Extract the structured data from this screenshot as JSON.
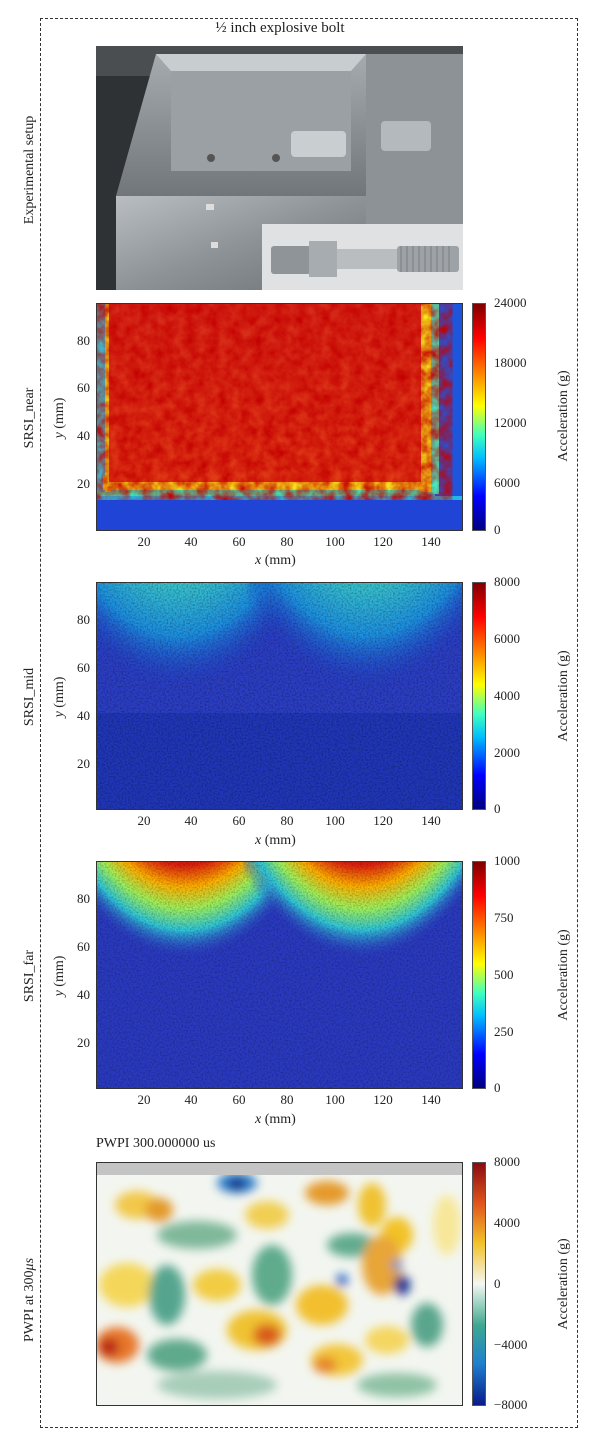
{
  "figure": {
    "top_title": "½ inch explosive bolt",
    "rows": [
      {
        "side_label": "Experimental setup"
      },
      {
        "side_label": "SRSI_near",
        "ylabel_italic": "y",
        "ylabel_unit": " (mm)",
        "xlabel_italic": "x",
        "xlabel_unit": " (mm)",
        "yticks": [
          "80",
          "60",
          "40",
          "20"
        ],
        "xticks": [
          "20",
          "40",
          "60",
          "80",
          "100",
          "120",
          "140"
        ],
        "colorbar_ticks": [
          "24000",
          "18000",
          "12000",
          "6000",
          "0"
        ],
        "colorbar_label": "Acceleration (g)"
      },
      {
        "side_label": "SRSI_mid",
        "ylabel_italic": "y",
        "ylabel_unit": " (mm)",
        "xlabel_italic": "x",
        "xlabel_unit": " (mm)",
        "yticks": [
          "80",
          "60",
          "40",
          "20"
        ],
        "xticks": [
          "20",
          "40",
          "60",
          "80",
          "100",
          "120",
          "140"
        ],
        "colorbar_ticks": [
          "8000",
          "6000",
          "4000",
          "2000",
          "0"
        ],
        "colorbar_label": "Acceleration (g)"
      },
      {
        "side_label": "SRSI_far",
        "ylabel_italic": "y",
        "ylabel_unit": " (mm)",
        "xlabel_italic": "x",
        "xlabel_unit": " (mm)",
        "yticks": [
          "80",
          "60",
          "40",
          "20"
        ],
        "xticks": [
          "20",
          "40",
          "60",
          "80",
          "100",
          "120",
          "140"
        ],
        "colorbar_ticks": [
          "1000",
          "750",
          "500",
          "250",
          "0"
        ],
        "colorbar_label": "Acceleration (g)"
      },
      {
        "side_label_prefix": "PWPI at 300",
        "side_label_italic": "μs",
        "panel_title": "PWPI 300.000000 us",
        "colorbar_ticks": [
          "8000",
          "4000",
          "0",
          "−4000",
          "−8000"
        ],
        "colorbar_label": "Acceleration (g)"
      }
    ],
    "colors": {
      "jet": [
        "#00007f",
        "#0000ff",
        "#00bfff",
        "#40ffbf",
        "#ffff00",
        "#ff7f00",
        "#ff0000",
        "#7f0000"
      ],
      "diverging": [
        "#0a1a8a",
        "#1f7fcf",
        "#3fa88f",
        "#f4f7f2",
        "#f2c228",
        "#e0561c",
        "#8b0a10"
      ]
    }
  }
}
